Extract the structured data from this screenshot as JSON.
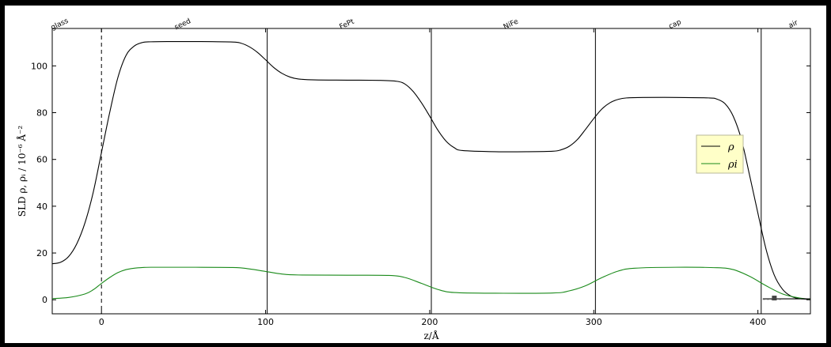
{
  "chart_data": {
    "type": "line",
    "xlabel": "z/Å",
    "ylabel": "SLD ρ, ρᵢ / 10⁻⁶ Å⁻²",
    "xlim": [
      -30,
      432
    ],
    "ylim": [
      -6,
      116
    ],
    "x_ticks": [
      0,
      100,
      200,
      300,
      400
    ],
    "y_ticks": [
      0,
      20,
      40,
      60,
      80,
      100
    ],
    "grid": false,
    "legend_position": "right",
    "layers": [
      {
        "name": "glass",
        "x": -25,
        "angle": -25
      },
      {
        "name": "seed",
        "x": 50,
        "angle": -25
      },
      {
        "name": "FePt",
        "x": 150,
        "angle": -25
      },
      {
        "name": "NiFe",
        "x": 250,
        "angle": -25
      },
      {
        "name": "cap",
        "x": 350,
        "angle": -25
      },
      {
        "name": "air",
        "x": 422,
        "angle": -25
      }
    ],
    "interfaces": [
      0,
      101,
      201,
      301,
      402
    ],
    "series": [
      {
        "name": "ρ",
        "color": "#000000",
        "x": [
          -30,
          -25,
          -20,
          -15,
          -10,
          -5,
          0,
          5,
          10,
          15,
          20,
          25,
          30,
          40,
          60,
          80,
          85,
          90,
          95,
          100,
          105,
          110,
          115,
          120,
          130,
          150,
          170,
          180,
          185,
          190,
          195,
          200,
          205,
          210,
          215,
          220,
          240,
          260,
          275,
          280,
          285,
          290,
          295,
          300,
          305,
          310,
          315,
          320,
          330,
          350,
          370,
          375,
          380,
          385,
          390,
          395,
          400,
          405,
          410,
          415,
          420,
          425,
          432
        ],
        "values": [
          15.4,
          16,
          18.5,
          24,
          33,
          46,
          63,
          80,
          95,
          104.5,
          108.5,
          110,
          110.3,
          110.4,
          110.4,
          110.2,
          109.7,
          108.2,
          105.8,
          102.6,
          99.3,
          96.8,
          95.2,
          94.4,
          94,
          93.9,
          93.8,
          93.4,
          92.2,
          89,
          84.2,
          78.5,
          72.5,
          67.8,
          65,
          63.8,
          63.3,
          63.3,
          63.5,
          64.1,
          65.6,
          68.5,
          72.9,
          77.5,
          81.6,
          84.3,
          85.7,
          86.3,
          86.5,
          86.5,
          86.3,
          85.8,
          83.8,
          78.4,
          68.4,
          53,
          37,
          21.5,
          10.5,
          4.5,
          1.6,
          0.5,
          0.2
        ]
      },
      {
        "name": "ρᵢ",
        "color": "#1a8a1a",
        "x": [
          -30,
          -20,
          -10,
          -5,
          0,
          5,
          10,
          15,
          20,
          25,
          30,
          50,
          80,
          90,
          100,
          110,
          120,
          150,
          175,
          185,
          195,
          205,
          215,
          240,
          275,
          285,
          295,
          305,
          315,
          325,
          350,
          375,
          385,
          395,
          405,
          415,
          425,
          432
        ],
        "values": [
          0.5,
          1,
          2.5,
          4.3,
          7,
          9.5,
          11.6,
          12.9,
          13.5,
          13.8,
          13.9,
          13.9,
          13.8,
          13.2,
          12.1,
          11,
          10.6,
          10.5,
          10.4,
          9.5,
          7,
          4.4,
          3.1,
          2.8,
          2.9,
          3.8,
          6,
          9.5,
          12.3,
          13.5,
          13.9,
          13.7,
          12.9,
          10,
          6,
          2.5,
          0.8,
          0.3
        ]
      }
    ],
    "extra_segments": [
      {
        "name": "air-marker-black",
        "color": "#000000",
        "dash": "solid",
        "x": [
          403,
          432
        ],
        "values": [
          0.4,
          0.4
        ]
      },
      {
        "name": "air-marker-dashed",
        "color": "#555555",
        "dash": "dashed",
        "x": [
          403,
          415
        ],
        "values": [
          0.2,
          0.2
        ]
      }
    ],
    "legend": [
      {
        "label": "ρ",
        "color": "#000000"
      },
      {
        "label": "ρi",
        "color": "#1a8a1a"
      }
    ],
    "colors": {
      "legend_bg": "#ffffc8",
      "legend_border": "#b8b89a"
    }
  }
}
